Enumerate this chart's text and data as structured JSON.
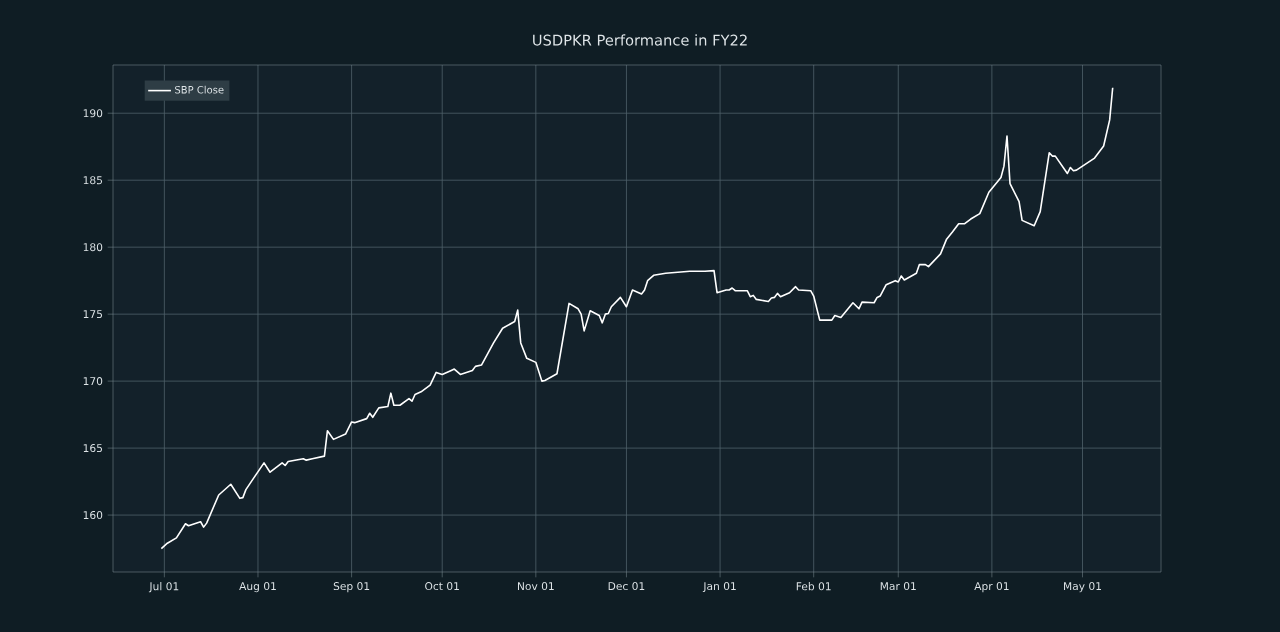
{
  "chart_data": {
    "type": "line",
    "title": "USDPKR Performance in FY22",
    "x": [
      "2021-06-30",
      "2021-07-02",
      "2021-07-05",
      "2021-07-08",
      "2021-07-09",
      "2021-07-13",
      "2021-07-14",
      "2021-07-15",
      "2021-07-19",
      "2021-07-23",
      "2021-07-26",
      "2021-07-27",
      "2021-07-28",
      "2021-08-03",
      "2021-08-05",
      "2021-08-09",
      "2021-08-10",
      "2021-08-11",
      "2021-08-16",
      "2021-08-17",
      "2021-08-19",
      "2021-08-23",
      "2021-08-24",
      "2021-08-26",
      "2021-08-30",
      "2021-09-01",
      "2021-09-02",
      "2021-09-06",
      "2021-09-07",
      "2021-09-08",
      "2021-09-10",
      "2021-09-13",
      "2021-09-14",
      "2021-09-15",
      "2021-09-17",
      "2021-09-20",
      "2021-09-21",
      "2021-09-22",
      "2021-09-24",
      "2021-09-27",
      "2021-09-29",
      "2021-10-01",
      "2021-10-04",
      "2021-10-05",
      "2021-10-07",
      "2021-10-11",
      "2021-10-12",
      "2021-10-14",
      "2021-10-18",
      "2021-10-21",
      "2021-10-25",
      "2021-10-26",
      "2021-10-27",
      "2021-10-29",
      "2021-11-01",
      "2021-11-03",
      "2021-11-04",
      "2021-11-08",
      "2021-11-12",
      "2021-11-15",
      "2021-11-16",
      "2021-11-17",
      "2021-11-19",
      "2021-11-22",
      "2021-11-23",
      "2021-11-24",
      "2021-11-25",
      "2021-11-26",
      "2021-11-29",
      "2021-12-01",
      "2021-12-03",
      "2021-12-06",
      "2021-12-07",
      "2021-12-08",
      "2021-12-10",
      "2021-12-14",
      "2021-12-22",
      "2021-12-27",
      "2021-12-30",
      "2021-12-31",
      "2022-01-03",
      "2022-01-04",
      "2022-01-05",
      "2022-01-06",
      "2022-01-10",
      "2022-01-11",
      "2022-01-12",
      "2022-01-13",
      "2022-01-17",
      "2022-01-18",
      "2022-01-19",
      "2022-01-20",
      "2022-01-21",
      "2022-01-24",
      "2022-01-26",
      "2022-01-27",
      "2022-01-31",
      "2022-02-01",
      "2022-02-03",
      "2022-02-07",
      "2022-02-08",
      "2022-02-10",
      "2022-02-14",
      "2022-02-16",
      "2022-02-17",
      "2022-02-21",
      "2022-02-22",
      "2022-02-23",
      "2022-02-25",
      "2022-02-28",
      "2022-03-01",
      "2022-03-02",
      "2022-03-03",
      "2022-03-07",
      "2022-03-08",
      "2022-03-10",
      "2022-03-11",
      "2022-03-15",
      "2022-03-17",
      "2022-03-19",
      "2022-03-21",
      "2022-03-23",
      "2022-03-25",
      "2022-03-28",
      "2022-03-31",
      "2022-04-04",
      "2022-04-05",
      "2022-04-06",
      "2022-04-07",
      "2022-04-10",
      "2022-04-11",
      "2022-04-15",
      "2022-04-17",
      "2022-04-20",
      "2022-04-21",
      "2022-04-22",
      "2022-04-26",
      "2022-04-27",
      "2022-04-28",
      "2022-04-29",
      "2022-05-05",
      "2022-05-08",
      "2022-05-10",
      "2022-05-11"
    ],
    "series": [
      {
        "name": "SBP Close",
        "color": "#ffffff",
        "values": [
          157.5,
          157.9,
          158.3,
          159.35,
          159.2,
          159.5,
          159.1,
          159.4,
          161.5,
          162.3,
          161.25,
          161.3,
          161.9,
          163.9,
          163.2,
          163.9,
          163.7,
          164.0,
          164.2,
          164.1,
          164.2,
          164.4,
          166.3,
          165.65,
          166.05,
          166.95,
          166.9,
          167.2,
          167.6,
          167.3,
          168.0,
          168.1,
          169.1,
          168.2,
          168.2,
          168.7,
          168.5,
          169.0,
          169.2,
          169.7,
          170.65,
          170.5,
          170.8,
          170.9,
          170.5,
          170.8,
          171.1,
          171.2,
          172.85,
          173.95,
          174.45,
          175.3,
          172.85,
          171.7,
          171.4,
          170.0,
          170.05,
          170.55,
          175.8,
          175.4,
          175.0,
          173.75,
          175.25,
          174.9,
          174.35,
          175.0,
          175.05,
          175.55,
          176.25,
          175.55,
          176.8,
          176.5,
          176.8,
          177.5,
          177.9,
          178.05,
          178.2,
          178.2,
          178.25,
          176.6,
          176.8,
          176.8,
          176.95,
          176.75,
          176.75,
          176.3,
          176.4,
          176.1,
          175.95,
          176.2,
          176.25,
          176.55,
          176.3,
          176.6,
          177.05,
          176.8,
          176.75,
          176.35,
          174.55,
          174.55,
          174.9,
          174.75,
          175.85,
          175.4,
          175.9,
          175.85,
          176.25,
          176.35,
          177.2,
          177.5,
          177.4,
          177.85,
          177.55,
          178.05,
          178.7,
          178.7,
          178.55,
          179.5,
          180.6,
          181.15,
          181.75,
          181.75,
          182.1,
          182.5,
          184.1,
          185.2,
          186.05,
          188.3,
          184.75,
          183.4,
          182.0,
          181.6,
          182.65,
          187.05,
          186.8,
          186.8,
          185.5,
          185.95,
          185.7,
          185.75,
          186.65,
          187.55,
          189.5,
          191.9
        ]
      }
    ],
    "xlim": [
      "2021-06-14",
      "2022-05-27"
    ],
    "xticks": [
      {
        "value": "2021-07-01",
        "label": "Jul 01"
      },
      {
        "value": "2021-08-01",
        "label": "Aug 01"
      },
      {
        "value": "2021-09-01",
        "label": "Sep 01"
      },
      {
        "value": "2021-10-01",
        "label": "Oct 01"
      },
      {
        "value": "2021-11-01",
        "label": "Nov 01"
      },
      {
        "value": "2021-12-01",
        "label": "Dec 01"
      },
      {
        "value": "2022-01-01",
        "label": "Jan 01"
      },
      {
        "value": "2022-02-01",
        "label": "Feb 01"
      },
      {
        "value": "2022-03-01",
        "label": "Mar 01"
      },
      {
        "value": "2022-04-01",
        "label": "Apr 01"
      },
      {
        "value": "2022-05-01",
        "label": "May 01"
      }
    ],
    "ylim": [
      155.75,
      193.6
    ],
    "yticks": [
      160,
      165,
      170,
      175,
      180,
      185,
      190
    ],
    "grid": true,
    "legend": "top left"
  }
}
